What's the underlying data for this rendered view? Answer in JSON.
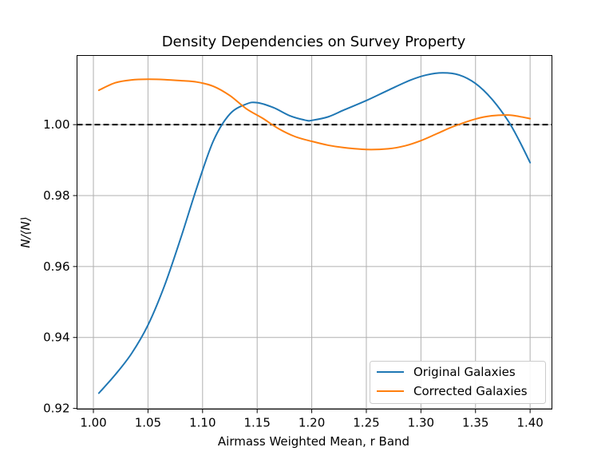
{
  "chart_data": {
    "type": "line",
    "title": "Density Dependencies on Survey Property",
    "xlabel": "Airmass Weighted Mean, r Band",
    "ylabel": "N/⟨N⟩",
    "xlim": [
      0.985,
      1.42
    ],
    "ylim": [
      0.9198,
      1.0195
    ],
    "x_ticks": [
      1.0,
      1.05,
      1.1,
      1.15,
      1.2,
      1.25,
      1.3,
      1.35,
      1.4
    ],
    "x_tick_labels": [
      "1.00",
      "1.05",
      "1.10",
      "1.15",
      "1.20",
      "1.25",
      "1.30",
      "1.35",
      "1.40"
    ],
    "y_ticks": [
      0.92,
      0.94,
      0.96,
      0.98,
      1.0
    ],
    "y_tick_labels": [
      "0.92",
      "0.94",
      "0.96",
      "0.98",
      "1.00"
    ],
    "grid": true,
    "legend_position": "lower-right",
    "reference_line": {
      "y": 1.0,
      "style": "dashed",
      "color": "#000000"
    },
    "series": [
      {
        "name": "Original Galaxies",
        "color": "#1f77b4",
        "x": [
          1.005,
          1.02,
          1.035,
          1.05,
          1.065,
          1.08,
          1.095,
          1.11,
          1.125,
          1.14,
          1.15,
          1.165,
          1.18,
          1.195,
          1.2,
          1.215,
          1.23,
          1.25,
          1.27,
          1.29,
          1.305,
          1.32,
          1.335,
          1.35,
          1.365,
          1.38,
          1.39,
          1.4
        ],
        "y": [
          0.9243,
          0.9295,
          0.9355,
          0.9435,
          0.9545,
          0.968,
          0.9825,
          0.9955,
          1.003,
          1.0058,
          1.0062,
          1.0048,
          1.0025,
          1.0012,
          1.0012,
          1.0022,
          1.0042,
          1.0068,
          1.0097,
          1.0125,
          1.014,
          1.0146,
          1.014,
          1.0116,
          1.0072,
          1.001,
          0.9955,
          0.9893
        ]
      },
      {
        "name": "Corrected Galaxies",
        "color": "#ff7f0e",
        "x": [
          1.005,
          1.02,
          1.035,
          1.05,
          1.065,
          1.08,
          1.095,
          1.11,
          1.125,
          1.14,
          1.155,
          1.17,
          1.185,
          1.2,
          1.215,
          1.23,
          1.25,
          1.27,
          1.285,
          1.3,
          1.315,
          1.33,
          1.35,
          1.365,
          1.38,
          1.39,
          1.4
        ],
        "y": [
          1.0097,
          1.0118,
          1.0126,
          1.0128,
          1.0127,
          1.0124,
          1.012,
          1.0108,
          1.0082,
          1.0045,
          1.0018,
          0.9988,
          0.9966,
          0.9953,
          0.9942,
          0.9935,
          0.993,
          0.9932,
          0.994,
          0.9955,
          0.9975,
          0.9995,
          1.0016,
          1.0025,
          1.0027,
          1.0023,
          1.0017
        ]
      }
    ]
  }
}
